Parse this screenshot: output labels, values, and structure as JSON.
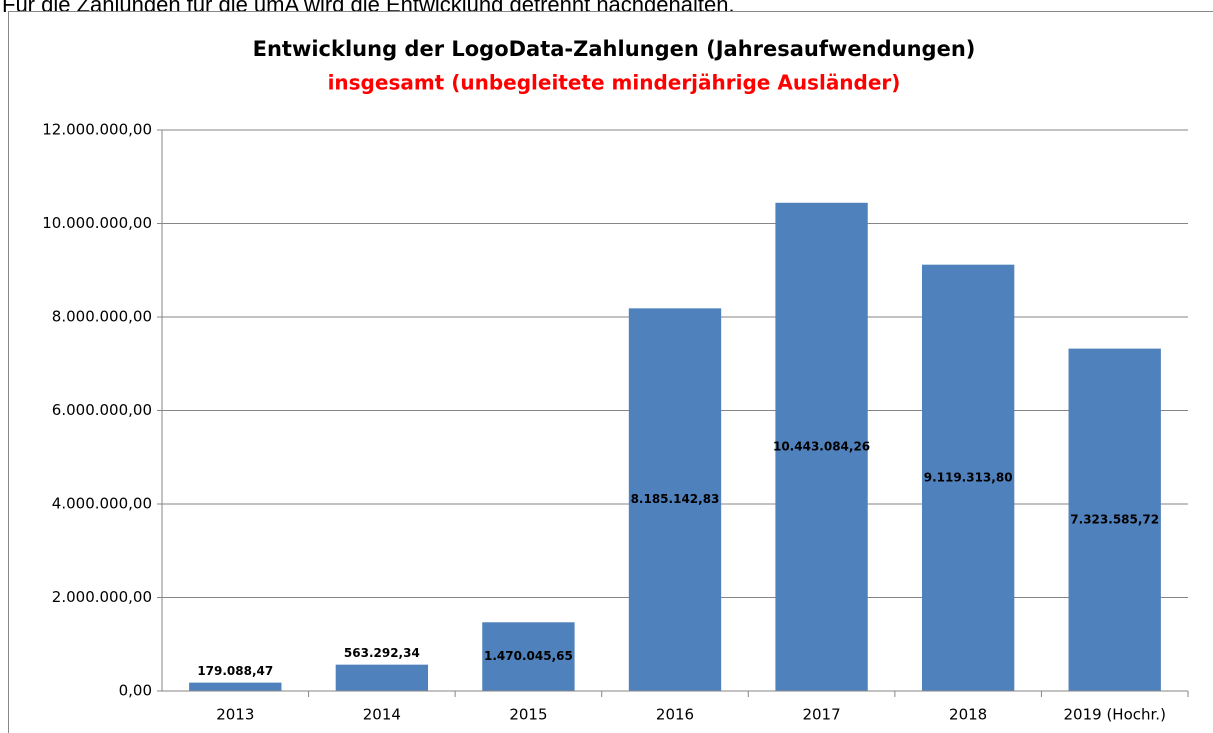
{
  "caption": "Für die Zahlungen für die umA wird die Entwicklung getrennt nachgehalten.",
  "chart_data": {
    "type": "bar",
    "title": "Entwicklung der LogoData-Zahlungen (Jahresaufwendungen)",
    "subtitle": "insgesamt (unbegleitete minderjährige Ausländer)",
    "categories": [
      "2013",
      "2014",
      "2015",
      "2016",
      "2017",
      "2018",
      "2019 (Hochr.)"
    ],
    "values": [
      179088.47,
      563292.34,
      1470045.65,
      8185142.83,
      10443084.26,
      9119313.8,
      7323585.72
    ],
    "value_labels": [
      "179.088,47",
      "563.292,34",
      "1.470.045,65",
      "8.185.142,83",
      "10.443.084,26",
      "9.119.313,80",
      "7.323.585,72"
    ],
    "color": "#4f81bd",
    "ylim": [
      0,
      12000000
    ],
    "yticks": [
      {
        "value": 0,
        "label": "0,00"
      },
      {
        "value": 2000000,
        "label": "2.000.000,00"
      },
      {
        "value": 4000000,
        "label": "4.000.000,00"
      },
      {
        "value": 6000000,
        "label": "6.000.000,00"
      },
      {
        "value": 8000000,
        "label": "8.000.000,00"
      },
      {
        "value": 10000000,
        "label": "10.000.000,00"
      },
      {
        "value": 12000000,
        "label": "12.000.000,00"
      }
    ],
    "grid": true
  }
}
